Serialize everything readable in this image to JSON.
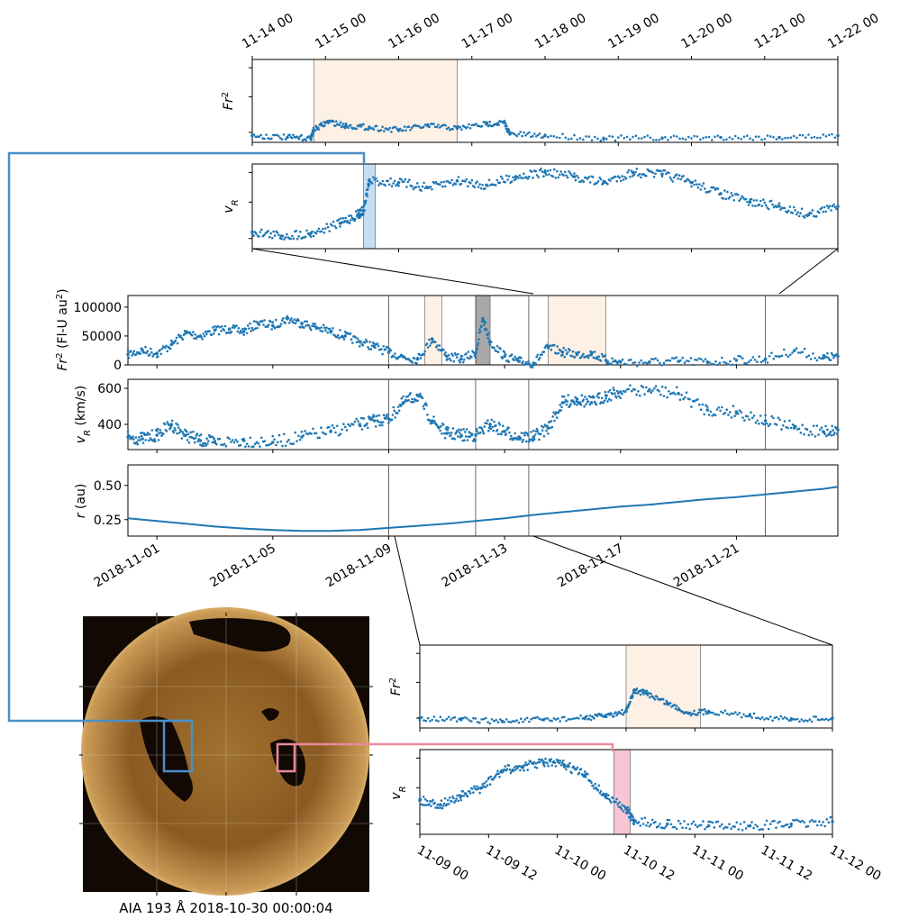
{
  "colors": {
    "series": "#1f77b4",
    "peach_band": "#fdf0e4",
    "blue_band": "#c6def2",
    "gray_band": "#a8a8a8",
    "pink_band": "#f6c6d4",
    "blue_connector": "#4a90c6",
    "pink_connector": "#e98a9a",
    "sun_dark": "#120904",
    "sun_mid": "#8a5a22",
    "sun_bright": "#f2cf8e"
  },
  "chart_data": [
    {
      "type": "scatter",
      "id": "main",
      "panels": [
        {
          "name": "Fr2",
          "ylabel": "Fr² (Fl-U au²)",
          "ylabel_base": "Fr",
          "ylabel_sup": "2",
          "ylabel_units": "(Fl-U au",
          "ylabel_units_sup": "2",
          "ylabel_units_close": ")",
          "yticks": [
            "0",
            "50000",
            "100000"
          ],
          "ylim": [
            0,
            120000
          ]
        },
        {
          "name": "vR",
          "ylabel": "vR (km/s)",
          "ylabel_base": "v",
          "ylabel_sub": "R",
          "ylabel_units": "(km/s)",
          "yticks": [
            "400",
            "600"
          ],
          "ylim": [
            260,
            650
          ]
        },
        {
          "name": "r",
          "ylabel": "r (au)",
          "ylabel_base": "r",
          "ylabel_units": "(au)",
          "yticks": [
            "0.25",
            "0.50"
          ],
          "ylim": [
            0.13,
            0.65
          ]
        }
      ],
      "xlim": [
        "2018-10-31 00:00",
        "2018-11-24 12:00"
      ],
      "xticks": [
        "2018-11-01",
        "2018-11-05",
        "2018-11-09",
        "2018-11-13",
        "2018-11-17",
        "2018-11-21"
      ],
      "series_fr2": [
        [
          "2018-10-31 00:00",
          18000
        ],
        [
          "2018-10-31 12:00",
          25000
        ],
        [
          "2018-11-01 00:00",
          20000
        ],
        [
          "2018-11-01 12:00",
          35000
        ],
        [
          "2018-11-02 00:00",
          55000
        ],
        [
          "2018-11-02 12:00",
          50000
        ],
        [
          "2018-11-03 00:00",
          60000
        ],
        [
          "2018-11-03 12:00",
          62000
        ],
        [
          "2018-11-04 00:00",
          58000
        ],
        [
          "2018-11-04 12:00",
          72000
        ],
        [
          "2018-11-05 00:00",
          68000
        ],
        [
          "2018-11-05 12:00",
          80000
        ],
        [
          "2018-11-06 00:00",
          72000
        ],
        [
          "2018-11-06 12:00",
          65000
        ],
        [
          "2018-11-07 00:00",
          58000
        ],
        [
          "2018-11-07 12:00",
          50000
        ],
        [
          "2018-11-08 00:00",
          40000
        ],
        [
          "2018-11-08 12:00",
          32000
        ],
        [
          "2018-11-09 00:00",
          22000
        ],
        [
          "2018-11-09 12:00",
          14000
        ],
        [
          "2018-11-10 00:00",
          10000
        ],
        [
          "2018-11-10 12:00",
          45000
        ],
        [
          "2018-11-11 00:00",
          15000
        ],
        [
          "2018-11-11 12:00",
          10000
        ],
        [
          "2018-11-12 00:00",
          20000
        ],
        [
          "2018-11-12 06:00",
          80000
        ],
        [
          "2018-11-12 12:00",
          40000
        ],
        [
          "2018-11-13 00:00",
          15000
        ],
        [
          "2018-11-13 12:00",
          6000
        ],
        [
          "2018-11-14 00:00",
          3000
        ],
        [
          "2018-11-14 12:00",
          30000
        ],
        [
          "2018-11-15 00:00",
          22000
        ],
        [
          "2018-11-15 12:00",
          18000
        ],
        [
          "2018-11-16 00:00",
          20000
        ],
        [
          "2018-11-16 12:00",
          8000
        ],
        [
          "2018-11-17 00:00",
          5000
        ],
        [
          "2018-11-18 00:00",
          5000
        ],
        [
          "2018-11-19 00:00",
          6000
        ],
        [
          "2018-11-20 00:00",
          5000
        ],
        [
          "2018-11-21 00:00",
          8000
        ],
        [
          "2018-11-22 00:00",
          10000
        ],
        [
          "2018-11-23 00:00",
          25000
        ],
        [
          "2018-11-24 00:00",
          12000
        ],
        [
          "2018-11-24 12:00",
          15000
        ]
      ],
      "series_vr": [
        [
          "2018-10-31 00:00",
          330
        ],
        [
          "2018-10-31 12:00",
          320
        ],
        [
          "2018-11-01 00:00",
          340
        ],
        [
          "2018-11-01 12:00",
          400
        ],
        [
          "2018-11-02 00:00",
          340
        ],
        [
          "2018-11-02 12:00",
          310
        ],
        [
          "2018-11-03 00:00",
          300
        ],
        [
          "2018-11-04 00:00",
          310
        ],
        [
          "2018-11-05 00:00",
          300
        ],
        [
          "2018-11-06 00:00",
          330
        ],
        [
          "2018-11-07 00:00",
          360
        ],
        [
          "2018-11-08 00:00",
          400
        ],
        [
          "2018-11-08 12:00",
          420
        ],
        [
          "2018-11-09 00:00",
          430
        ],
        [
          "2018-11-09 12:00",
          520
        ],
        [
          "2018-11-10 00:00",
          560
        ],
        [
          "2018-11-10 12:00",
          420
        ],
        [
          "2018-11-11 00:00",
          350
        ],
        [
          "2018-11-11 12:00",
          340
        ],
        [
          "2018-11-12 00:00",
          340
        ],
        [
          "2018-11-12 12:00",
          400
        ],
        [
          "2018-11-13 00:00",
          360
        ],
        [
          "2018-11-13 12:00",
          330
        ],
        [
          "2018-11-14 00:00",
          330
        ],
        [
          "2018-11-14 12:00",
          380
        ],
        [
          "2018-11-15 00:00",
          520
        ],
        [
          "2018-11-15 12:00",
          540
        ],
        [
          "2018-11-16 00:00",
          520
        ],
        [
          "2018-11-16 12:00",
          560
        ],
        [
          "2018-11-17 00:00",
          580
        ],
        [
          "2018-11-18 00:00",
          590
        ],
        [
          "2018-11-19 00:00",
          570
        ],
        [
          "2018-11-20 00:00",
          480
        ],
        [
          "2018-11-21 00:00",
          470
        ],
        [
          "2018-11-22 00:00",
          420
        ],
        [
          "2018-11-23 00:00",
          380
        ],
        [
          "2018-11-24 00:00",
          360
        ],
        [
          "2018-11-24 12:00",
          370
        ]
      ],
      "series_r": [
        [
          "2018-10-31 00:00",
          0.26
        ],
        [
          "2018-11-01 00:00",
          0.24
        ],
        [
          "2018-11-02 00:00",
          0.22
        ],
        [
          "2018-11-03 00:00",
          0.2
        ],
        [
          "2018-11-04 00:00",
          0.185
        ],
        [
          "2018-11-05 00:00",
          0.175
        ],
        [
          "2018-11-06 00:00",
          0.168
        ],
        [
          "2018-11-07 00:00",
          0.168
        ],
        [
          "2018-11-08 00:00",
          0.175
        ],
        [
          "2018-11-09 00:00",
          0.19
        ],
        [
          "2018-11-10 00:00",
          0.205
        ],
        [
          "2018-11-11 00:00",
          0.22
        ],
        [
          "2018-11-12 00:00",
          0.24
        ],
        [
          "2018-11-13 00:00",
          0.26
        ],
        [
          "2018-11-14 00:00",
          0.285
        ],
        [
          "2018-11-15 00:00",
          0.305
        ],
        [
          "2018-11-16 00:00",
          0.325
        ],
        [
          "2018-11-17 00:00",
          0.345
        ],
        [
          "2018-11-18 00:00",
          0.36
        ],
        [
          "2018-11-19 00:00",
          0.38
        ],
        [
          "2018-11-20 00:00",
          0.4
        ],
        [
          "2018-11-21 00:00",
          0.415
        ],
        [
          "2018-11-22 00:00",
          0.435
        ],
        [
          "2018-11-23 00:00",
          0.455
        ],
        [
          "2018-11-24 00:00",
          0.475
        ],
        [
          "2018-11-24 12:00",
          0.49
        ]
      ],
      "highlight_bands": [
        {
          "from": "2018-11-10 06:00",
          "to": "2018-11-10 20:00",
          "color": "peach"
        },
        {
          "from": "2018-11-12 00:00",
          "to": "2018-11-12 12:00",
          "color": "gray"
        },
        {
          "from": "2018-11-14 12:00",
          "to": "2018-11-16 12:00",
          "color": "peach"
        }
      ],
      "marker_lines": [
        "2018-11-09 00:00",
        "2018-11-12 00:00",
        "2018-11-13 20:00",
        "2018-11-22 00:00"
      ]
    },
    {
      "type": "scatter",
      "id": "zoom_top",
      "xlim": [
        "2018-11-13 20:00",
        "2018-11-22 00:00"
      ],
      "xticks": [
        "11-14 00",
        "11-15 00",
        "11-16 00",
        "11-17 00",
        "11-18 00",
        "11-19 00",
        "11-20 00",
        "11-21 00",
        "11-22 00"
      ],
      "panels": [
        {
          "name": "Fr2",
          "ylabel_base": "Fr",
          "ylabel_sup": "2",
          "ylim": [
            0,
            1
          ]
        },
        {
          "name": "vR",
          "ylabel_base": "v",
          "ylabel_sub": "R",
          "ylim": [
            0,
            1
          ]
        }
      ],
      "series_fr2": [
        [
          0.0,
          0.08
        ],
        [
          0.06,
          0.06
        ],
        [
          0.1,
          0.05
        ],
        [
          0.105,
          0.15
        ],
        [
          0.13,
          0.25
        ],
        [
          0.16,
          0.2
        ],
        [
          0.2,
          0.18
        ],
        [
          0.25,
          0.15
        ],
        [
          0.3,
          0.2
        ],
        [
          0.35,
          0.17
        ],
        [
          0.4,
          0.22
        ],
        [
          0.43,
          0.24
        ],
        [
          0.44,
          0.1
        ],
        [
          0.5,
          0.08
        ],
        [
          0.6,
          0.05
        ],
        [
          0.7,
          0.05
        ],
        [
          0.8,
          0.06
        ],
        [
          0.9,
          0.06
        ],
        [
          1.0,
          0.08
        ]
      ],
      "series_vr": [
        [
          0.0,
          0.2
        ],
        [
          0.05,
          0.15
        ],
        [
          0.1,
          0.18
        ],
        [
          0.15,
          0.3
        ],
        [
          0.18,
          0.4
        ],
        [
          0.19,
          0.45
        ],
        [
          0.2,
          0.8
        ],
        [
          0.25,
          0.78
        ],
        [
          0.3,
          0.72
        ],
        [
          0.35,
          0.8
        ],
        [
          0.4,
          0.75
        ],
        [
          0.45,
          0.85
        ],
        [
          0.5,
          0.9
        ],
        [
          0.55,
          0.85
        ],
        [
          0.6,
          0.78
        ],
        [
          0.65,
          0.9
        ],
        [
          0.7,
          0.88
        ],
        [
          0.75,
          0.78
        ],
        [
          0.8,
          0.65
        ],
        [
          0.85,
          0.55
        ],
        [
          0.9,
          0.5
        ],
        [
          0.95,
          0.4
        ],
        [
          1.0,
          0.5
        ]
      ],
      "bands": [
        {
          "from": 0.105,
          "to": 0.35,
          "color": "peach"
        },
        {
          "from": 0.19,
          "to": 0.21,
          "color": "blue"
        }
      ]
    },
    {
      "type": "scatter",
      "id": "zoom_bottom",
      "xlim": [
        "2018-11-09 00:00",
        "2018-11-12 00:00"
      ],
      "xticks": [
        "11-09 00",
        "11-09 12",
        "11-10 00",
        "11-10 12",
        "11-11 00",
        "11-11 12",
        "11-12 00"
      ],
      "panels": [
        {
          "name": "Fr2",
          "ylabel_base": "Fr",
          "ylabel_sup": "2",
          "ylim": [
            0,
            1
          ]
        },
        {
          "name": "vR",
          "ylabel_base": "v",
          "ylabel_sub": "R",
          "ylim": [
            0,
            1
          ]
        }
      ],
      "series_fr2": [
        [
          0.0,
          0.12
        ],
        [
          0.1,
          0.1
        ],
        [
          0.2,
          0.08
        ],
        [
          0.3,
          0.1
        ],
        [
          0.4,
          0.12
        ],
        [
          0.45,
          0.15
        ],
        [
          0.5,
          0.2
        ],
        [
          0.52,
          0.45
        ],
        [
          0.55,
          0.42
        ],
        [
          0.6,
          0.3
        ],
        [
          0.65,
          0.18
        ],
        [
          0.7,
          0.2
        ],
        [
          0.8,
          0.15
        ],
        [
          0.9,
          0.1
        ],
        [
          1.0,
          0.12
        ]
      ],
      "series_vr": [
        [
          0.0,
          0.4
        ],
        [
          0.05,
          0.35
        ],
        [
          0.1,
          0.45
        ],
        [
          0.15,
          0.55
        ],
        [
          0.2,
          0.75
        ],
        [
          0.25,
          0.8
        ],
        [
          0.3,
          0.85
        ],
        [
          0.35,
          0.82
        ],
        [
          0.4,
          0.7
        ],
        [
          0.45,
          0.45
        ],
        [
          0.5,
          0.3
        ],
        [
          0.52,
          0.15
        ],
        [
          0.6,
          0.12
        ],
        [
          0.7,
          0.1
        ],
        [
          0.8,
          0.1
        ],
        [
          0.9,
          0.12
        ],
        [
          1.0,
          0.15
        ]
      ],
      "bands": [
        {
          "from": 0.5,
          "to": 0.68,
          "color": "peach"
        },
        {
          "from": 0.47,
          "to": 0.51,
          "color": "pink"
        }
      ]
    }
  ],
  "image_panel": {
    "caption": "AIA 193 Å 2018-10-30 00:00:04",
    "boxes": [
      {
        "name": "blue-box",
        "color": "blue"
      },
      {
        "name": "pink-box",
        "color": "pink"
      }
    ]
  }
}
